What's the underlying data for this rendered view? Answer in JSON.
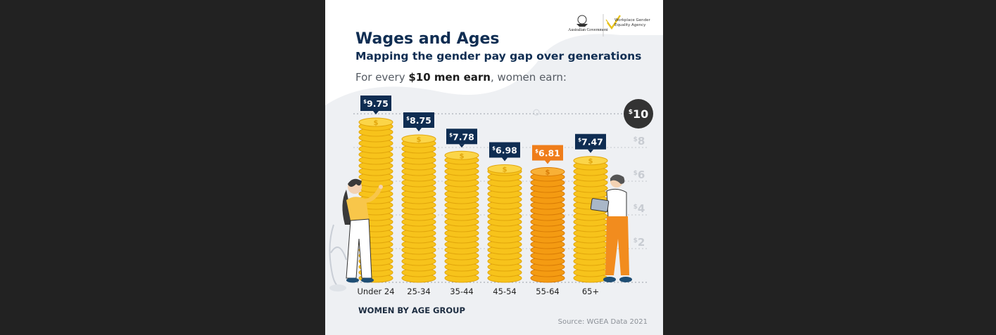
{
  "header": {
    "title": "Wages and Ages",
    "subtitle": "Mapping the gender pay gap over generations",
    "intro_prefix": "For every ",
    "intro_bold": "$10 men earn",
    "intro_suffix": ", women earn:"
  },
  "logos": {
    "gov": "Australian Government",
    "wgea": "Workplace Gender Equality Agency"
  },
  "footer": {
    "x_title": "WOMEN BY AGE GROUP",
    "source": "Source: WGEA Data 2021"
  },
  "colors": {
    "navy": "#0f2d52",
    "coin": "#f7c31b",
    "coin_highlight": "#f49b12",
    "badge_highlight": "#ef7d1a"
  },
  "chart_data": {
    "type": "bar",
    "title": "Wages and Ages",
    "xlabel": "WOMEN BY AGE GROUP",
    "ylabel": "",
    "categories": [
      "Under 24",
      "25-34",
      "35-44",
      "45-54",
      "55-64",
      "65+"
    ],
    "values": [
      9.75,
      8.75,
      7.78,
      6.98,
      6.81,
      7.47
    ],
    "value_labels": [
      "9.75",
      "8.75",
      "7.78",
      "6.98",
      "6.81",
      "7.47"
    ],
    "currency_symbol": "$",
    "highlight_index": 4,
    "ylim": [
      0,
      10
    ],
    "y_ticks": [
      2,
      4,
      6,
      8
    ],
    "y_max_label": "10",
    "grid": true
  }
}
